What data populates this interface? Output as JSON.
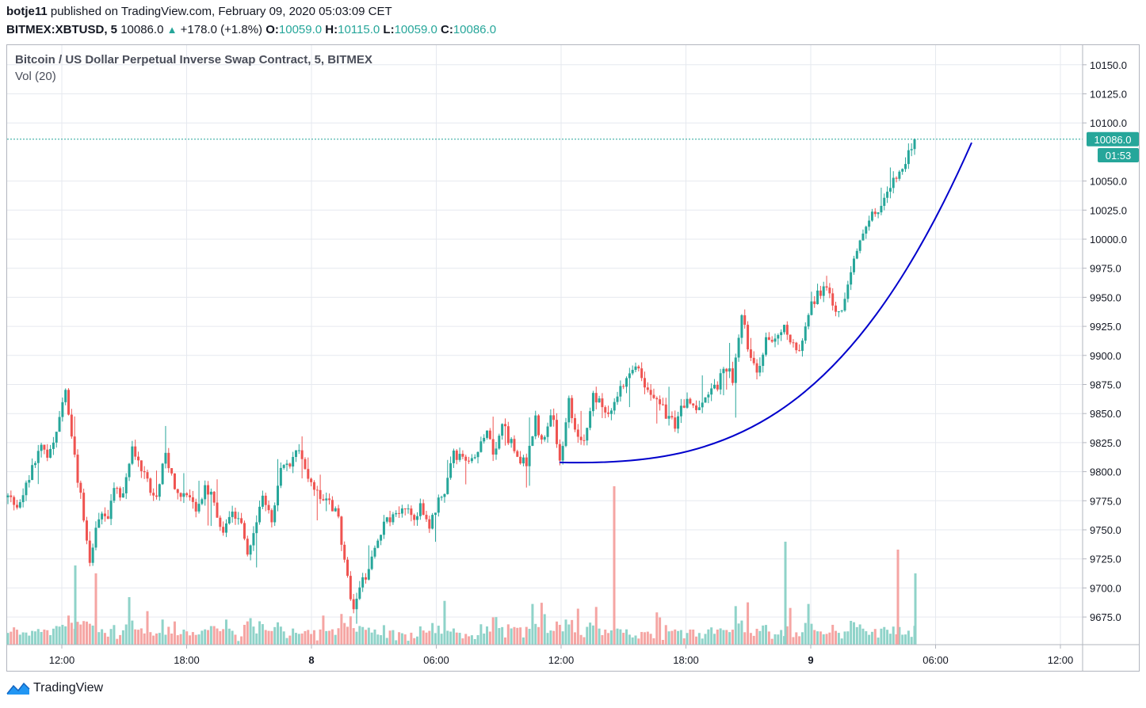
{
  "header": {
    "author": "botje11",
    "published": "published on TradingView.com, February 09, 2020 05:03:09 CET",
    "symbol": "BITMEX:XBTUSD, 5",
    "last": "10086.0",
    "change": "+178.0 (+1.8%)",
    "open_label": "O:",
    "open": "10059.0",
    "high_label": "H:",
    "high": "10115.0",
    "low_label": "L:",
    "low": "10059.0",
    "close_label": "C:",
    "close": "10086.0"
  },
  "legend": {
    "title": "Bitcoin / US Dollar Perpetual Inverse Swap Contract, 5, BITMEX",
    "volume": "Vol (20)"
  },
  "price_badge": "10086.0",
  "countdown_badge": "01:53",
  "brand": "TradingView",
  "colors": {
    "up": "#26a69a",
    "down": "#ef5350",
    "up_vol": "#8fd3c9",
    "down_vol": "#f5a5a3",
    "curve": "#0000cc",
    "grid": "#e6e9ef"
  },
  "chart_data": {
    "type": "candlestick",
    "interval": "5m",
    "ylim": [
      9650,
      10165
    ],
    "y_ticks": [
      9675,
      9700,
      9725,
      9750,
      9775,
      9800,
      9825,
      9850,
      9875,
      9900,
      9925,
      9950,
      9975,
      10000,
      10025,
      10050,
      10100,
      10125,
      10150
    ],
    "y_tick_labels": [
      "9675.0",
      "9700.0",
      "9725.0",
      "9750.0",
      "9775.0",
      "9800.0",
      "9825.0",
      "9850.0",
      "9875.0",
      "9900.0",
      "9925.0",
      "9950.0",
      "9975.0",
      "10000.0",
      "10025.0",
      "10050.0",
      "10100.0",
      "10125.0",
      "10150.0"
    ],
    "x_ticks": [
      "12:00",
      "18:00",
      "8",
      "06:00",
      "12:00",
      "18:00",
      "9",
      "06:00",
      "12:00"
    ],
    "x_ticks_bold": [
      false,
      false,
      true,
      false,
      false,
      false,
      true,
      false,
      false
    ],
    "last_price": 10086.0,
    "price_path": [
      [
        0,
        9778
      ],
      [
        1,
        9768
      ],
      [
        2,
        9782
      ],
      [
        3,
        9808
      ],
      [
        4,
        9822
      ],
      [
        5,
        9812
      ],
      [
        6,
        9838
      ],
      [
        7,
        9870
      ],
      [
        8,
        9815
      ],
      [
        9,
        9770
      ],
      [
        10,
        9722
      ],
      [
        11,
        9760
      ],
      [
        12,
        9760
      ],
      [
        13,
        9785
      ],
      [
        14,
        9780
      ],
      [
        15,
        9820
      ],
      [
        16,
        9805
      ],
      [
        17,
        9790
      ],
      [
        18,
        9775
      ],
      [
        19,
        9820
      ],
      [
        20,
        9792
      ],
      [
        21,
        9780
      ],
      [
        22,
        9780
      ],
      [
        23,
        9765
      ],
      [
        24,
        9788
      ],
      [
        25,
        9775
      ],
      [
        26,
        9750
      ],
      [
        27,
        9765
      ],
      [
        28,
        9762
      ],
      [
        29,
        9728
      ],
      [
        30,
        9752
      ],
      [
        31,
        9780
      ],
      [
        32,
        9752
      ],
      [
        33,
        9800
      ],
      [
        34,
        9805
      ],
      [
        35,
        9822
      ],
      [
        36,
        9800
      ],
      [
        37,
        9788
      ],
      [
        38,
        9780
      ],
      [
        39,
        9775
      ],
      [
        40,
        9763
      ],
      [
        41,
        9712
      ],
      [
        42,
        9682
      ],
      [
        43,
        9705
      ],
      [
        44,
        9722
      ],
      [
        45,
        9748
      ],
      [
        46,
        9758
      ],
      [
        47,
        9760
      ],
      [
        48,
        9775
      ],
      [
        49,
        9760
      ],
      [
        50,
        9770
      ],
      [
        51,
        9750
      ],
      [
        52,
        9770
      ],
      [
        53,
        9785
      ],
      [
        54,
        9815
      ],
      [
        55,
        9810
      ],
      [
        56,
        9805
      ],
      [
        57,
        9812
      ],
      [
        58,
        9840
      ],
      [
        59,
        9815
      ],
      [
        60,
        9840
      ],
      [
        61,
        9825
      ],
      [
        62,
        9810
      ],
      [
        63,
        9808
      ],
      [
        64,
        9845
      ],
      [
        65,
        9822
      ],
      [
        66,
        9848
      ],
      [
        67,
        9810
      ],
      [
        68,
        9860
      ],
      [
        69,
        9835
      ],
      [
        70,
        9825
      ],
      [
        71,
        9865
      ],
      [
        72,
        9858
      ],
      [
        73,
        9848
      ],
      [
        74,
        9865
      ],
      [
        75,
        9880
      ],
      [
        76,
        9895
      ],
      [
        77,
        9880
      ],
      [
        78,
        9870
      ],
      [
        79,
        9862
      ],
      [
        80,
        9845
      ],
      [
        81,
        9840
      ],
      [
        82,
        9860
      ],
      [
        83,
        9855
      ],
      [
        84,
        9858
      ],
      [
        85,
        9870
      ],
      [
        86,
        9870
      ],
      [
        87,
        9892
      ],
      [
        88,
        9880
      ],
      [
        89,
        9940
      ],
      [
        90,
        9900
      ],
      [
        91,
        9878
      ],
      [
        92,
        9915
      ],
      [
        93,
        9910
      ],
      [
        94,
        9925
      ],
      [
        95,
        9915
      ],
      [
        96,
        9905
      ],
      [
        97,
        9935
      ],
      [
        98,
        9950
      ],
      [
        99,
        9960
      ],
      [
        100,
        9945
      ],
      [
        101,
        9935
      ],
      [
        102,
        9968
      ],
      [
        103,
        9990
      ],
      [
        104,
        10005
      ],
      [
        105,
        10025
      ],
      [
        106,
        10030
      ],
      [
        107,
        10045
      ],
      [
        108,
        10060
      ],
      [
        109,
        10070
      ],
      [
        110,
        10086
      ]
    ],
    "volume_label": "Vol (20)",
    "fit_curve": {
      "color": "#0000cc",
      "from": [
        "12:00 Feb 8",
        9808
      ],
      "to": [
        "~07:30 Feb 9",
        10083
      ]
    }
  }
}
